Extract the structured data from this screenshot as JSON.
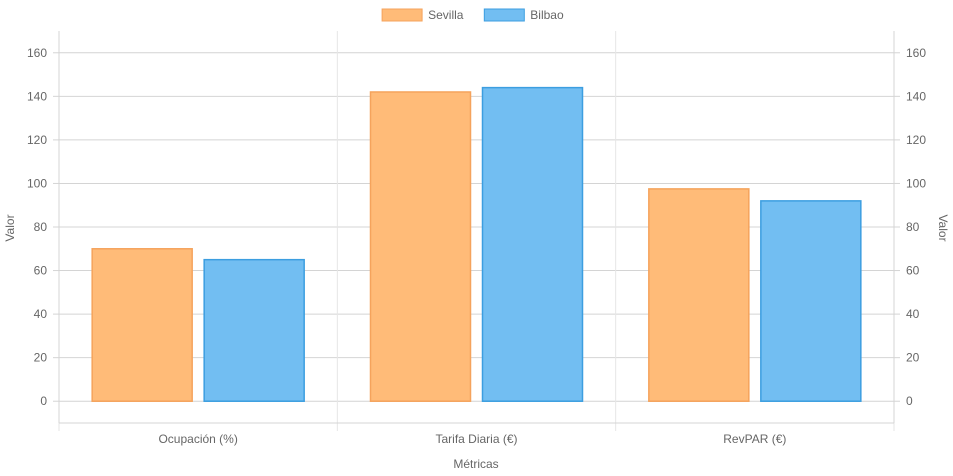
{
  "chart_data": {
    "type": "bar",
    "categories": [
      "Ocupación (%)",
      "Tarifa Diaria (€)",
      "RevPAR (€)"
    ],
    "series": [
      {
        "name": "Sevilla",
        "values": [
          70,
          142,
          97.5
        ],
        "fill": "#ffbb78",
        "stroke": "#f5a35c"
      },
      {
        "name": "Bilbao",
        "values": [
          65,
          144,
          92
        ],
        "fill": "#72bef2",
        "stroke": "#3c9ee0"
      }
    ],
    "xlabel": "Métricas",
    "ylabel": "Valor",
    "ylabel_right": "Valor",
    "ylim": [
      -10,
      170
    ],
    "yticks": [
      0,
      20,
      40,
      60,
      80,
      100,
      120,
      140,
      160
    ],
    "grid": true,
    "legend_position": "top-center",
    "dual_y_axis": true
  }
}
